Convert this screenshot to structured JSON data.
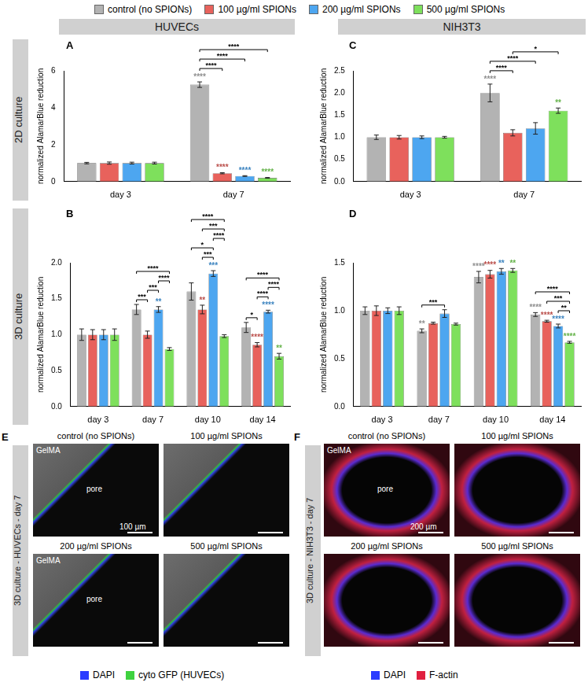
{
  "chart_data": [
    {
      "type": "bar",
      "panel": "A",
      "grid": false,
      "y_label": "normalized AlamarBlue reduction",
      "categories": [
        "day 3",
        "day 7"
      ],
      "series": [
        {
          "name": "control (no SPIONs)",
          "color": "#b3b3b3",
          "values": [
            1.0,
            5.25
          ],
          "errors": [
            0.04,
            0.15
          ],
          "stars": [
            null,
            "****"
          ]
        },
        {
          "name": "100 µg/ml SPIONs",
          "color": "#e8625c",
          "values": [
            1.0,
            0.45
          ],
          "errors": [
            0.06,
            0.03
          ],
          "stars": [
            null,
            "****"
          ]
        },
        {
          "name": "200 µg/ml SPIONs",
          "color": "#4da6f0",
          "values": [
            1.0,
            0.3
          ],
          "errors": [
            0.05,
            0.02
          ],
          "stars": [
            null,
            "****"
          ]
        },
        {
          "name": "500 µg/ml SPIONs",
          "color": "#7ee05c",
          "values": [
            1.0,
            0.2
          ],
          "errors": [
            0.05,
            0.02
          ],
          "stars": [
            null,
            "****"
          ]
        }
      ],
      "ylim": [
        0,
        6
      ],
      "yticks": [
        0,
        2,
        4,
        6
      ],
      "brackets": [
        {
          "category": "day 7",
          "from": "control (no SPIONs)",
          "to": "100 µg/ml SPIONs",
          "label": "****"
        },
        {
          "category": "day 7",
          "from": "control (no SPIONs)",
          "to": "200 µg/ml SPIONs",
          "label": "****"
        },
        {
          "category": "day 7",
          "from": "control (no SPIONs)",
          "to": "500 µg/ml SPIONs",
          "label": "****"
        }
      ]
    },
    {
      "type": "bar",
      "panel": "B",
      "grid": false,
      "y_label": "normalized AlamarBlue reduction",
      "categories": [
        "day 3",
        "day 7",
        "day 10",
        "day 14"
      ],
      "series": [
        {
          "name": "control (no SPIONs)",
          "color": "#b3b3b3",
          "values": [
            1.0,
            1.35,
            1.6,
            1.1
          ],
          "errors": [
            0.08,
            0.07,
            0.12,
            0.07
          ],
          "stars": [
            null,
            null,
            null,
            null
          ]
        },
        {
          "name": "100 µg/ml SPIONs",
          "color": "#e8625c",
          "values": [
            1.0,
            1.0,
            1.35,
            0.86
          ],
          "errors": [
            0.07,
            0.05,
            0.06,
            0.03
          ],
          "stars": [
            null,
            null,
            "**",
            "****"
          ]
        },
        {
          "name": "200 µg/ml SPIONs",
          "color": "#4da6f0",
          "values": [
            1.0,
            1.35,
            1.85,
            1.32
          ],
          "errors": [
            0.07,
            0.04,
            0.04,
            0.02
          ],
          "stars": [
            null,
            "**",
            "***",
            "****"
          ]
        },
        {
          "name": "500 µg/ml SPIONs",
          "color": "#7ee05c",
          "values": [
            1.0,
            0.8,
            0.98,
            0.7
          ],
          "errors": [
            0.08,
            0.02,
            0.02,
            0.04
          ],
          "stars": [
            null,
            null,
            null,
            "**"
          ]
        }
      ],
      "ylim": [
        0,
        2
      ],
      "yticks": [
        {
          "value": 0,
          "label": "0.0"
        },
        {
          "value": 0.5,
          "label": "0.5"
        },
        {
          "value": 1,
          "label": "1.0"
        },
        {
          "value": 1.5,
          "label": "1.5"
        },
        {
          "value": 2,
          "label": "2.0"
        }
      ],
      "brackets": [
        {
          "category": "day 7",
          "from": "control (no SPIONs)",
          "to": "100 µg/ml SPIONs",
          "label": "***"
        },
        {
          "category": "day 7",
          "from": "100 µg/ml SPIONs",
          "to": "200 µg/ml SPIONs",
          "label": "***"
        },
        {
          "category": "day 7",
          "from": "200 µg/ml SPIONs",
          "to": "500 µg/ml SPIONs",
          "label": "****"
        },
        {
          "category": "day 7",
          "from": "control (no SPIONs)",
          "to": "500 µg/ml SPIONs",
          "label": "****"
        },
        {
          "category": "day 10",
          "from": "100 µg/ml SPIONs",
          "to": "200 µg/ml SPIONs",
          "label": "***"
        },
        {
          "category": "day 10",
          "from": "control (no SPIONs)",
          "to": "200 µg/ml SPIONs",
          "label": "*"
        },
        {
          "category": "day 10",
          "from": "200 µg/ml SPIONs",
          "to": "500 µg/ml SPIONs",
          "label": "****"
        },
        {
          "category": "day 10",
          "from": "100 µg/ml SPIONs",
          "to": "500 µg/ml SPIONs",
          "label": "***"
        },
        {
          "category": "day 10",
          "from": "control (no SPIONs)",
          "to": "500 µg/ml SPIONs",
          "label": "****"
        },
        {
          "category": "day 14",
          "from": "control (no SPIONs)",
          "to": "100 µg/ml SPIONs",
          "label": "*"
        },
        {
          "category": "day 14",
          "from": "100 µg/ml SPIONs",
          "to": "200 µg/ml SPIONs",
          "label": "****"
        },
        {
          "category": "day 14",
          "from": "200 µg/ml SPIONs",
          "to": "500 µg/ml SPIONs",
          "label": "****"
        },
        {
          "category": "day 14",
          "from": "control (no SPIONs)",
          "to": "500 µg/ml SPIONs",
          "label": "****"
        }
      ]
    },
    {
      "type": "bar",
      "panel": "C",
      "grid": false,
      "y_label": "normalized AlamarBlue reduction",
      "categories": [
        "day 3",
        "day 7"
      ],
      "series": [
        {
          "name": "control (no SPIONs)",
          "color": "#b3b3b3",
          "values": [
            1.0,
            2.0
          ],
          "errors": [
            0.05,
            0.2
          ],
          "stars": [
            null,
            "****"
          ]
        },
        {
          "name": "100 µg/ml SPIONs",
          "color": "#e8625c",
          "values": [
            1.0,
            1.1
          ],
          "errors": [
            0.04,
            0.07
          ],
          "stars": [
            null,
            null
          ]
        },
        {
          "name": "200 µg/ml SPIONs",
          "color": "#4da6f0",
          "values": [
            1.0,
            1.2
          ],
          "errors": [
            0.03,
            0.13
          ],
          "stars": [
            null,
            null
          ]
        },
        {
          "name": "500 µg/ml SPIONs",
          "color": "#7ee05c",
          "values": [
            1.0,
            1.6
          ],
          "errors": [
            0.02,
            0.06
          ],
          "stars": [
            null,
            "**"
          ]
        }
      ],
      "ylim": [
        0,
        2.5
      ],
      "yticks": [
        {
          "value": 0,
          "label": "0.0"
        },
        {
          "value": 0.5,
          "label": "0.5"
        },
        {
          "value": 1,
          "label": "1.0"
        },
        {
          "value": 1.5,
          "label": "1.5"
        },
        {
          "value": 2,
          "label": "2.0"
        },
        {
          "value": 2.5,
          "label": "2.5"
        }
      ],
      "brackets": [
        {
          "category": "day 7",
          "from": "control (no SPIONs)",
          "to": "100 µg/ml SPIONs",
          "label": "****"
        },
        {
          "category": "day 7",
          "from": "control (no SPIONs)",
          "to": "200 µg/ml SPIONs",
          "label": "****"
        },
        {
          "category": "day 7",
          "from": "100 µg/ml SPIONs",
          "to": "500 µg/ml SPIONs",
          "label": "*"
        }
      ]
    },
    {
      "type": "bar",
      "panel": "D",
      "grid": false,
      "y_label": "normalized AlamarBlue reduction",
      "categories": [
        "day 3",
        "day 7",
        "day 10",
        "day 14"
      ],
      "series": [
        {
          "name": "control (no SPIONs)",
          "color": "#b3b3b3",
          "values": [
            1.0,
            0.79,
            1.35,
            0.96
          ],
          "errors": [
            0.04,
            0.02,
            0.06,
            0.02
          ],
          "stars": [
            null,
            "**",
            "****",
            "****"
          ]
        },
        {
          "name": "100 µg/ml SPIONs",
          "color": "#e8625c",
          "values": [
            1.0,
            0.87,
            1.38,
            0.89
          ],
          "errors": [
            0.05,
            0.01,
            0.04,
            0.01
          ],
          "stars": [
            null,
            null,
            "****",
            "****"
          ]
        },
        {
          "name": "200 µg/ml SPIONs",
          "color": "#4da6f0",
          "values": [
            1.0,
            0.97,
            1.41,
            0.84
          ],
          "errors": [
            0.03,
            0.04,
            0.03,
            0.02
          ],
          "stars": [
            null,
            null,
            "**",
            "****"
          ]
        },
        {
          "name": "500 µg/ml SPIONs",
          "color": "#7ee05c",
          "values": [
            1.0,
            0.86,
            1.42,
            0.67
          ],
          "errors": [
            0.04,
            0.01,
            0.02,
            0.01
          ],
          "stars": [
            null,
            null,
            "**",
            "****"
          ]
        }
      ],
      "ylim": [
        0,
        1.5
      ],
      "yticks": [
        {
          "value": 0,
          "label": "0.0"
        },
        {
          "value": 0.5,
          "label": "0.5"
        },
        {
          "value": 1,
          "label": "1.0"
        },
        {
          "value": 1.5,
          "label": "1.5"
        }
      ],
      "brackets": [
        {
          "category": "day 7",
          "from": "control (no SPIONs)",
          "to": "200 µg/ml SPIONs",
          "label": "***"
        },
        {
          "category": "day 14",
          "from": "200 µg/ml SPIONs",
          "to": "500 µg/ml SPIONs",
          "label": "**"
        },
        {
          "category": "day 14",
          "from": "100 µg/ml SPIONs",
          "to": "500 µg/ml SPIONs",
          "label": "***"
        },
        {
          "category": "day 14",
          "from": "control (no SPIONs)",
          "to": "500 µg/ml SPIONs",
          "label": "****"
        }
      ]
    }
  ],
  "column_headers": [
    "HUVECs",
    "NIH3T3"
  ],
  "row_labels": [
    "2D culture",
    "3D culture"
  ],
  "image_panels": [
    {
      "panel": "E",
      "title": "3D culture - HUVECs - day 7",
      "tiles": [
        {
          "title": "control (no SPIONs)",
          "texts": [
            "GelMA",
            "pore",
            "100 µm"
          ]
        },
        {
          "title": "100 µg/ml SPIONs",
          "texts": []
        },
        {
          "title": "200 µg/ml SPIONs",
          "texts": [
            "GelMA",
            "pore"
          ]
        },
        {
          "title": "500 µg/ml SPIONs",
          "texts": []
        }
      ],
      "legend": [
        {
          "name": "DAPI",
          "color": "#2b3cff"
        },
        {
          "name": "cyto GFP (HUVECs)",
          "color": "#3fd23f"
        }
      ]
    },
    {
      "panel": "F",
      "title": "3D culture - NIH3T3 - day 7",
      "tiles": [
        {
          "title": "control (no SPIONs)",
          "texts": [
            "GelMA",
            "pore",
            "200 µm"
          ]
        },
        {
          "title": "100 µg/ml SPIONs",
          "texts": []
        },
        {
          "title": "200 µg/ml SPIONs",
          "texts": []
        },
        {
          "title": "500 µg/ml SPIONs",
          "texts": []
        }
      ],
      "legend": [
        {
          "name": "DAPI",
          "color": "#2b3cff"
        },
        {
          "name": "F-actin",
          "color": "#e02040"
        }
      ]
    }
  ]
}
